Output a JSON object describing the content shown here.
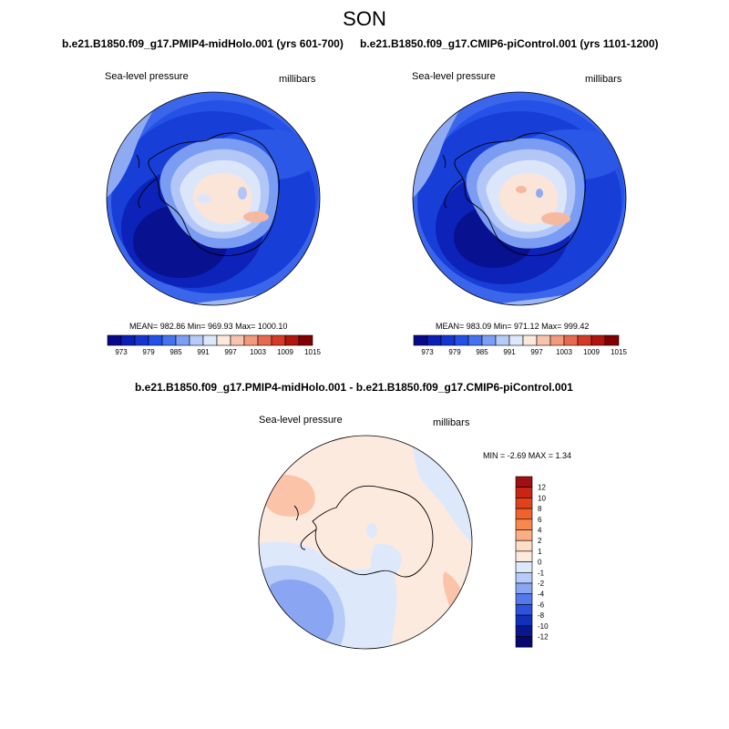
{
  "title": "SON",
  "panels": [
    {
      "case": "b.e21.B1850.f09_g17.PMIP4-midHolo.001 (yrs 601-700)",
      "variable": "Sea-level pressure",
      "units": "millibars",
      "stats": "MEAN= 982.86  Min= 969.93  Max= 1000.10"
    },
    {
      "case": "b.e21.B1850.f09_g17.CMIP6-piControl.001 (yrs 1101-1200)",
      "variable": "Sea-level pressure",
      "units": "millibars",
      "stats": "MEAN= 983.09  Min= 971.12  Max= 999.42"
    }
  ],
  "top_colorbar": {
    "labels": [
      "973",
      "979",
      "985",
      "991",
      "997",
      "1003",
      "1009",
      "1015"
    ],
    "colors": [
      "#08088a",
      "#0a1fb5",
      "#1435d2",
      "#2251e8",
      "#4473f0",
      "#7c9ef5",
      "#b6cbf8",
      "#dde9fb",
      "#fde8dc",
      "#f7c4ad",
      "#f29a7c",
      "#e86a4e",
      "#d63a25",
      "#b0150e",
      "#800000"
    ]
  },
  "difference": {
    "title": "b.e21.B1850.f09_g17.PMIP4-midHolo.001 - b.e21.B1850.f09_g17.CMIP6-piControl.001",
    "variable": "Sea-level pressure",
    "units": "millibars",
    "minmax": "MIN =  -2.69 MAX =   1.34",
    "colorbar": {
      "labels": [
        "12",
        "10",
        "8",
        "6",
        "4",
        "2",
        "1",
        "0",
        "-1",
        "-2",
        "-4",
        "-6",
        "-8",
        "-10",
        "-12"
      ],
      "colors": [
        "#a01010",
        "#c92414",
        "#e0421c",
        "#f0622a",
        "#f7884e",
        "#fbae84",
        "#fddcc8",
        "#fdeadf",
        "#dde9fb",
        "#b6cbf8",
        "#8aa6f2",
        "#5479eb",
        "#2c52de",
        "#1230bb",
        "#0a1590",
        "#06086e"
      ]
    }
  }
}
